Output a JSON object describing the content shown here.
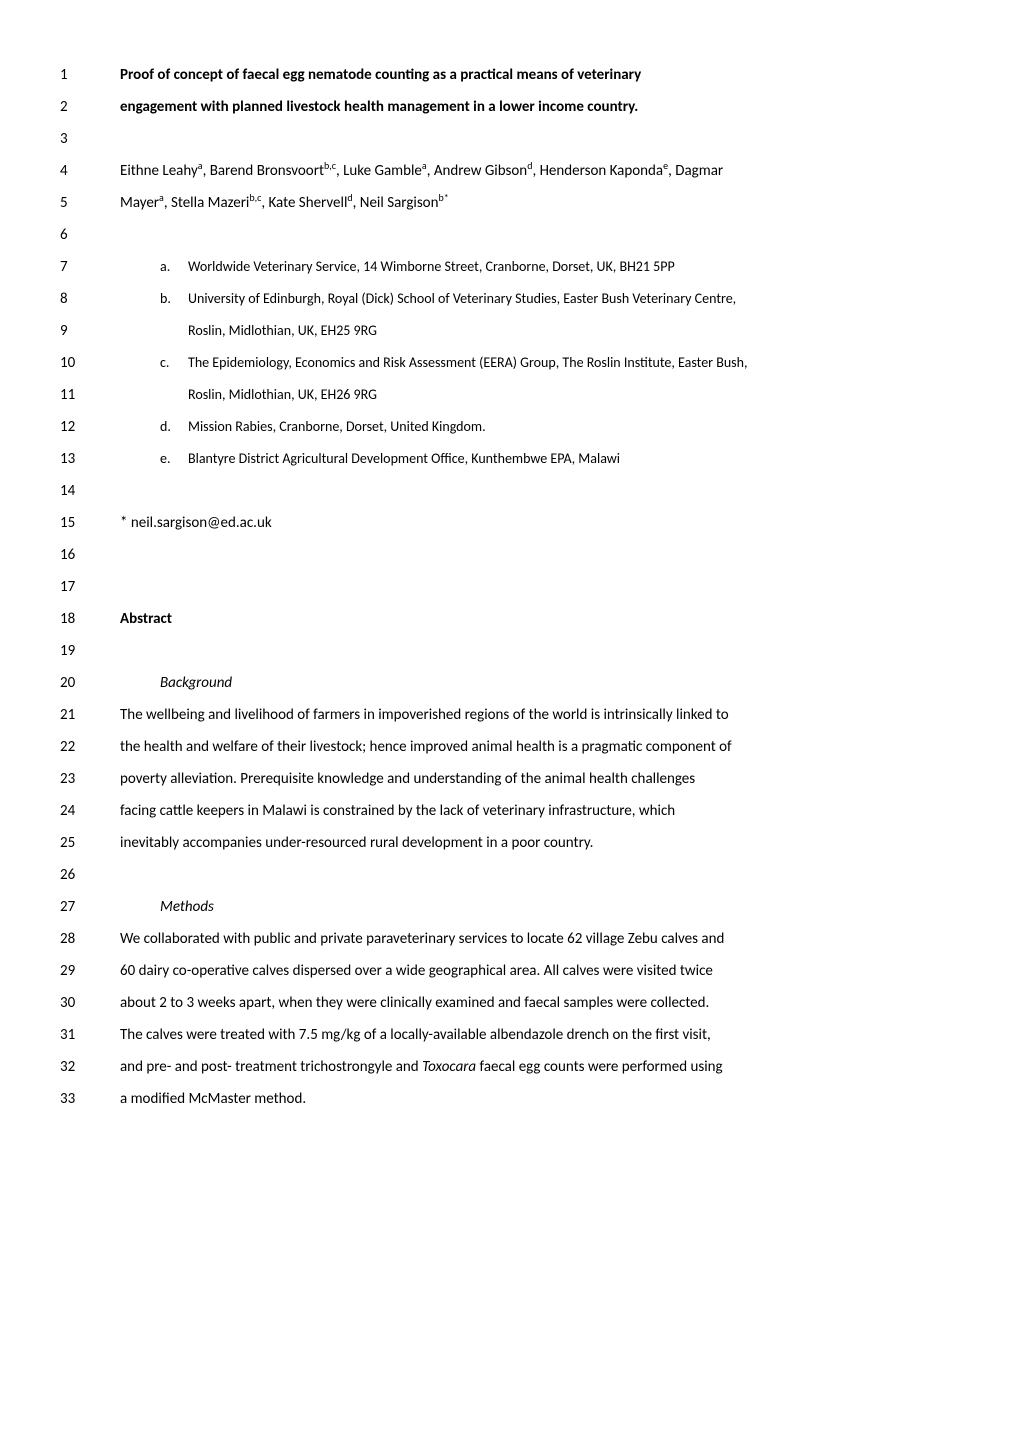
{
  "lines": [
    {
      "num": "1",
      "content": "Proof of concept of faecal egg nematode counting as a practical means of veterinary",
      "class": "bold"
    },
    {
      "num": "2",
      "content": "engagement with planned livestock health management in a lower income country.",
      "class": "bold"
    },
    {
      "num": "3",
      "content": ""
    },
    {
      "num": "4",
      "html": "Eithne Leahy<sup>a</sup>, Barend Bronsvoort<sup>b,c</sup>, Luke Gamble<sup>a</sup>, Andrew Gibson<sup>d</sup>, Henderson Kaponda<sup>e</sup>, Dagmar"
    },
    {
      "num": "5",
      "html": "Mayer<sup>a</sup>, Stella Mazeri<sup>b,c</sup>, Kate Shervell<sup>d</sup>, Neil Sargison<sup>b*</sup>"
    },
    {
      "num": "6",
      "content": ""
    },
    {
      "num": "7",
      "letter": "a.",
      "content": "Worldwide Veterinary Service, 14 Wimborne Street, Cranborne, Dorset, UK,  BH21 5PP",
      "class": "smaller indent-letter"
    },
    {
      "num": "8",
      "letter": "b.",
      "content": "University of Edinburgh, Royal (Dick) School of Veterinary Studies, Easter Bush Veterinary Centre,",
      "class": "smaller indent-letter"
    },
    {
      "num": "9",
      "content": "Roslin, Midlothian, UK, EH25 9RG",
      "class": "smaller indent-letter-cont"
    },
    {
      "num": "10",
      "letter": "c.",
      "content": "The Epidemiology, Economics and Risk Assessment (EERA) Group, The Roslin Institute, Easter Bush,",
      "class": "smaller indent-letter"
    },
    {
      "num": "11",
      "content": "Roslin, Midlothian, UK, EH26 9RG",
      "class": "smaller indent-letter-cont"
    },
    {
      "num": "12",
      "letter": "d.",
      "content": "Mission Rabies, Cranborne, Dorset, United Kingdom.",
      "class": "smaller indent-letter"
    },
    {
      "num": "13",
      "letter": "e.",
      "content": "Blantyre District Agricultural Development Office, Kunthembwe EPA, Malawi",
      "class": "smaller indent-letter"
    },
    {
      "num": "14",
      "content": ""
    },
    {
      "num": "15",
      "content": "* neil.sargison@ed.ac.uk"
    },
    {
      "num": "16",
      "content": ""
    },
    {
      "num": "17",
      "content": ""
    },
    {
      "num": "18",
      "content": "Abstract",
      "class": "bold"
    },
    {
      "num": "19",
      "content": ""
    },
    {
      "num": "20",
      "content": "Background",
      "class": "italic",
      "indent": true
    },
    {
      "num": "21",
      "content": "The wellbeing and livelihood of farmers in impoverished regions of the world is intrinsically linked to"
    },
    {
      "num": "22",
      "content": "the health and welfare of their livestock; hence improved animal health is a pragmatic component of"
    },
    {
      "num": "23",
      "content": "poverty alleviation.  Prerequisite knowledge and understanding of the animal health challenges"
    },
    {
      "num": "24",
      "content": "facing cattle keepers in Malawi is constrained by the lack of veterinary infrastructure, which"
    },
    {
      "num": "25",
      "content": "inevitably accompanies under-resourced rural development in a poor country."
    },
    {
      "num": "26",
      "content": ""
    },
    {
      "num": "27",
      "content": "Methods",
      "class": "italic",
      "indent": true
    },
    {
      "num": "28",
      "content": "We collaborated with public and private paraveterinary services to locate 62 village Zebu calves and"
    },
    {
      "num": "29",
      "content": "60 dairy co-operative calves dispersed over a wide geographical area.  All calves were visited twice"
    },
    {
      "num": "30",
      "content": "about 2 to 3 weeks apart, when they were clinically examined and faecal samples were collected."
    },
    {
      "num": "31",
      "content": "The calves were treated with 7.5 mg/kg of a locally-available albendazole drench on the first visit,"
    },
    {
      "num": "32",
      "html": "and pre- and post- treatment trichostrongyle and <span class=\"italic\">Toxocara</span> faecal egg counts were performed using"
    },
    {
      "num": "33",
      "content": "a modified McMaster method."
    }
  ]
}
